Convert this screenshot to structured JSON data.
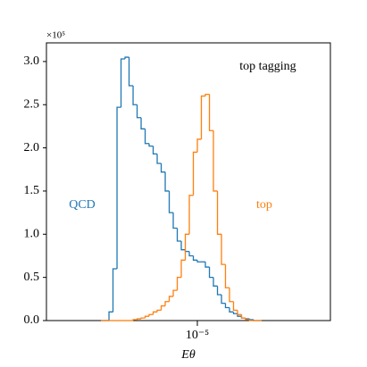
{
  "chart_data": {
    "type": "histogram",
    "y_multiplier": "×10⁵",
    "xlabel": "Eθ",
    "annotations": [
      "top tagging"
    ],
    "log_x": true,
    "xlim": [
      1.15e-06,
      6.73e-05
    ],
    "xticks": [
      {
        "value": 1e-05,
        "label": "10⁻⁵"
      }
    ],
    "ylim": [
      0,
      3.216
    ],
    "yticks": [
      {
        "value": 0,
        "label": "0.0"
      },
      0.5,
      {
        "value": 1,
        "label": "1.0"
      },
      1.5,
      {
        "value": 2,
        "label": "2.0"
      },
      2.5,
      {
        "value": 3,
        "label": "3.0"
      }
    ],
    "bins": [
      2.512e-06,
      2.661e-06,
      2.818e-06,
      2.985e-06,
      3.162e-06,
      3.35e-06,
      3.548e-06,
      3.758e-06,
      3.981e-06,
      4.217e-06,
      4.467e-06,
      4.732e-06,
      5.012e-06,
      5.309e-06,
      5.623e-06,
      5.957e-06,
      6.31e-06,
      6.683e-06,
      7.079e-06,
      7.499e-06,
      7.943e-06,
      8.414e-06,
      8.913e-06,
      9.441e-06,
      1e-05,
      1.059e-05,
      1.122e-05,
      1.189e-05,
      1.259e-05,
      1.334e-05,
      1.413e-05,
      1.496e-05,
      1.585e-05,
      1.679e-05,
      1.778e-05,
      1.884e-05,
      1.995e-05,
      2.113e-05,
      2.239e-05,
      2.371e-05,
      2.512e-05
    ],
    "series": [
      {
        "name": "QCD",
        "color": "#1f77b4",
        "values": [
          0,
          0,
          0.1,
          0.6,
          2.47,
          3.03,
          3.05,
          2.72,
          2.5,
          2.35,
          2.22,
          2.05,
          2.02,
          1.93,
          1.82,
          1.72,
          1.5,
          1.25,
          1.07,
          0.92,
          0.82,
          0.8,
          0.75,
          0.7,
          0.68,
          0.68,
          0.62,
          0.5,
          0.4,
          0.3,
          0.2,
          0.15,
          0.1,
          0.08,
          0.05,
          0.03,
          0.02,
          0.01,
          0,
          0
        ]
      },
      {
        "name": "top",
        "color": "#ff7f0e",
        "values": [
          0,
          0,
          0,
          0,
          0,
          0,
          0,
          0,
          0.01,
          0.02,
          0.03,
          0.05,
          0.07,
          0.1,
          0.12,
          0.17,
          0.22,
          0.28,
          0.35,
          0.5,
          0.7,
          1.0,
          1.45,
          1.95,
          2.1,
          2.6,
          2.62,
          2.2,
          1.5,
          1.0,
          0.65,
          0.38,
          0.22,
          0.12,
          0.07,
          0.03,
          0.01,
          0,
          0,
          0
        ]
      }
    ]
  }
}
